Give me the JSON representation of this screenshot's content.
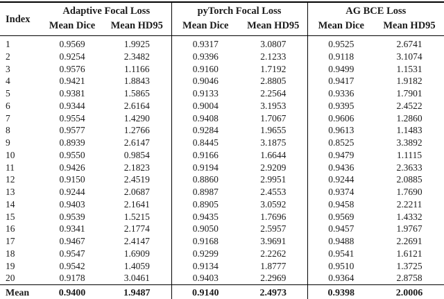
{
  "table": {
    "index_header": "Index",
    "groups": [
      {
        "title": "Adaptive Focal Loss",
        "sub": [
          "Mean Dice",
          "Mean HD95"
        ]
      },
      {
        "title": "pyTorch Focal Loss",
        "sub": [
          "Mean Dice",
          "Mean HD95"
        ]
      },
      {
        "title": "AG BCE Loss",
        "sub": [
          "Mean Dice",
          "Mean HD95"
        ]
      }
    ],
    "rows": [
      {
        "index": "1",
        "values": [
          "0.9569",
          "1.9925",
          "0.9317",
          "3.0807",
          "0.9525",
          "2.6741"
        ]
      },
      {
        "index": "2",
        "values": [
          "0.9254",
          "2.3482",
          "0.9396",
          "2.1233",
          "0.9118",
          "3.1074"
        ]
      },
      {
        "index": "3",
        "values": [
          "0.9576",
          "1.1166",
          "0.9160",
          "1.7192",
          "0.9499",
          "1.1531"
        ]
      },
      {
        "index": "4",
        "values": [
          "0.9421",
          "1.8843",
          "0.9046",
          "2.8805",
          "0.9417",
          "1.9182"
        ]
      },
      {
        "index": "5",
        "values": [
          "0.9381",
          "1.5865",
          "0.9133",
          "2.2564",
          "0.9336",
          "1.7901"
        ]
      },
      {
        "index": "6",
        "values": [
          "0.9344",
          "2.6164",
          "0.9004",
          "3.1953",
          "0.9395",
          "2.4522"
        ]
      },
      {
        "index": "7",
        "values": [
          "0.9554",
          "1.4290",
          "0.9408",
          "1.7067",
          "0.9606",
          "1.2860"
        ]
      },
      {
        "index": "8",
        "values": [
          "0.9577",
          "1.2766",
          "0.9284",
          "1.9655",
          "0.9613",
          "1.1483"
        ]
      },
      {
        "index": "9",
        "values": [
          "0.8939",
          "2.6147",
          "0.8445",
          "3.1875",
          "0.8525",
          "3.3892"
        ]
      },
      {
        "index": "10",
        "values": [
          "0.9550",
          "0.9854",
          "0.9166",
          "1.6644",
          "0.9479",
          "1.1115"
        ]
      },
      {
        "index": "11",
        "values": [
          "0.9426",
          "2.1823",
          "0.9194",
          "2.9209",
          "0.9436",
          "2.3633"
        ]
      },
      {
        "index": "12",
        "values": [
          "0.9150",
          "2.4519",
          "0.8860",
          "2.9951",
          "0.9244",
          "2.0885"
        ]
      },
      {
        "index": "13",
        "values": [
          "0.9244",
          "2.0687",
          "0.8987",
          "2.4553",
          "0.9374",
          "1.7690"
        ]
      },
      {
        "index": "14",
        "values": [
          "0.9403",
          "2.1641",
          "0.8905",
          "3.0592",
          "0.9458",
          "2.2211"
        ]
      },
      {
        "index": "15",
        "values": [
          "0.9539",
          "1.5215",
          "0.9435",
          "1.7696",
          "0.9569",
          "1.4332"
        ]
      },
      {
        "index": "16",
        "values": [
          "0.9341",
          "2.1774",
          "0.9050",
          "2.5957",
          "0.9457",
          "1.9767"
        ]
      },
      {
        "index": "17",
        "values": [
          "0.9467",
          "2.4147",
          "0.9168",
          "3.9691",
          "0.9488",
          "2.2691"
        ]
      },
      {
        "index": "18",
        "values": [
          "0.9547",
          "1.6909",
          "0.9299",
          "2.2262",
          "0.9541",
          "1.6121"
        ]
      },
      {
        "index": "19",
        "values": [
          "0.9542",
          "1.4059",
          "0.9134",
          "1.8777",
          "0.9510",
          "1.3725"
        ]
      },
      {
        "index": "20",
        "values": [
          "0.9178",
          "3.0461",
          "0.9403",
          "2.2969",
          "0.9364",
          "2.8758"
        ]
      }
    ],
    "mean": {
      "label": "Mean",
      "values": [
        "0.9400",
        "1.9487",
        "0.9140",
        "2.4973",
        "0.9398",
        "2.0006"
      ]
    },
    "colors": {
      "text": "#1b1b1b",
      "rule": "#000000",
      "background": "#ffffff"
    }
  }
}
